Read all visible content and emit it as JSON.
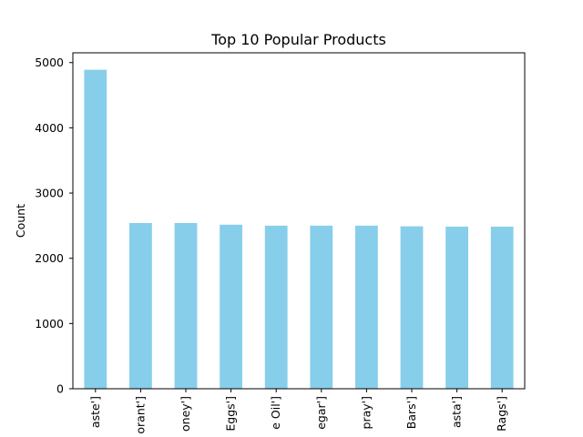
{
  "chart_data": {
    "type": "bar",
    "title": "Top 10 Popular Products",
    "xlabel": "",
    "ylabel": "Count",
    "categories": [
      "aste']",
      "orant']",
      "oney']",
      "Eggs']",
      "e Oil']",
      "egar']",
      "pray']",
      "Bars']",
      "asta']",
      "Rags']"
    ],
    "values": [
      4890,
      2540,
      2540,
      2515,
      2500,
      2500,
      2500,
      2490,
      2485,
      2485
    ],
    "ylim": [
      0,
      5150
    ],
    "yticks": [
      0,
      1000,
      2000,
      3000,
      4000,
      5000
    ],
    "grid": false,
    "legend": "none",
    "colors": {
      "bar": "#87ceeb",
      "axis": "#000000",
      "text": "#000000",
      "background": "#ffffff"
    }
  }
}
